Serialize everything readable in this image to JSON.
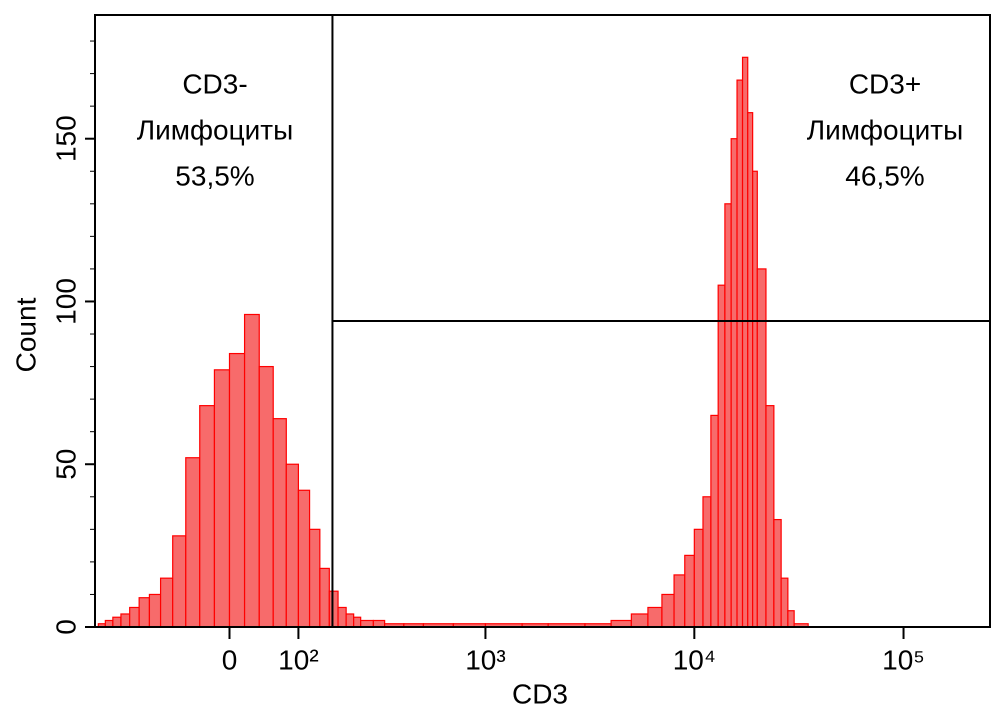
{
  "chart_data": {
    "type": "histogram",
    "x_label": "CD3",
    "y_label": "Count",
    "xscale": "biexponential",
    "xlim": [
      -250,
      259000
    ],
    "ylim": [
      0,
      188
    ],
    "xticks": [
      0,
      {
        "value": 100,
        "label": "10²"
      },
      {
        "value": 1000,
        "label": "10³"
      },
      {
        "value": 10000,
        "label": "10⁴"
      },
      {
        "value": 100000,
        "label": "10⁵"
      }
    ],
    "yticks": [
      0,
      50,
      100,
      150
    ],
    "yminorticks": [
      10,
      20,
      30,
      40,
      60,
      70,
      80,
      90,
      110,
      120,
      130,
      140,
      160,
      170,
      180
    ],
    "color": "#f76b6b",
    "edge_color": "#ff0000",
    "bins": [
      -240,
      -220,
      -200,
      -180,
      -160,
      -140,
      -120,
      -100,
      -80,
      -60,
      -40,
      -20,
      0,
      20,
      40,
      60,
      80,
      100,
      120,
      140,
      160,
      180,
      200,
      220,
      240,
      280,
      320,
      400,
      500,
      700,
      1000,
      1500,
      2000,
      3000,
      4000,
      5000,
      6000,
      7000,
      8000,
      9000,
      10000,
      11000,
      12000,
      13000,
      14000,
      15000,
      16000,
      17000,
      18000,
      19000,
      20000,
      22000,
      24000,
      26000,
      28000,
      30000,
      35000,
      40000,
      60000,
      100000,
      259000
    ],
    "values": [
      1,
      2,
      3,
      4,
      6,
      9,
      10,
      15,
      28,
      52,
      68,
      79,
      84,
      96,
      80,
      64,
      50,
      42,
      30,
      18,
      11,
      6,
      4,
      3,
      2,
      2,
      1,
      1,
      1,
      1,
      1,
      1,
      1,
      1,
      2,
      4,
      6,
      10,
      16,
      22,
      30,
      40,
      65,
      105,
      130,
      150,
      168,
      175,
      158,
      140,
      110,
      68,
      33,
      15,
      5,
      1,
      0,
      0,
      0,
      0
    ],
    "gate_x": 167,
    "gate_y": 94,
    "annotations": [
      {
        "lines": [
          "CD3-",
          "Лимфоциты",
          "53,5%"
        ]
      },
      {
        "lines": [
          "CD3+",
          "Лимфоциты",
          "46,5%"
        ]
      }
    ]
  }
}
